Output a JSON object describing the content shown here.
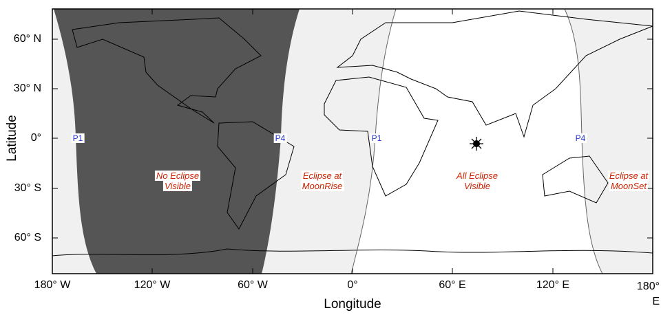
{
  "axes": {
    "x_label": "Longitude",
    "y_label": "Latitude",
    "x_ticks": [
      "180° W",
      "120° W",
      "60° W",
      "0°",
      "60° E",
      "120° E",
      "180° E"
    ],
    "y_ticks": [
      "60° N",
      "30° N",
      "0°",
      "30° S",
      "60° S"
    ]
  },
  "contacts": [
    "P1",
    "P4",
    "P1",
    "P4"
  ],
  "regions": [
    {
      "lines": [
        "No Eclipse",
        "Visible"
      ]
    },
    {
      "lines": [
        "Eclipse at",
        "MoonRise"
      ]
    },
    {
      "lines": [
        "All Eclipse",
        "Visible"
      ]
    },
    {
      "lines": [
        "Eclipse at",
        "MoonSet"
      ]
    }
  ]
}
